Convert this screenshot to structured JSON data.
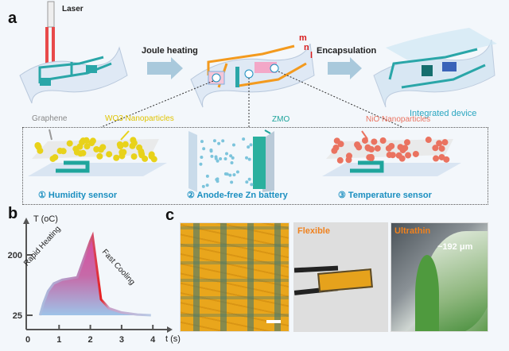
{
  "panel_a": {
    "label": "a",
    "laser": "Laser",
    "step1": "Joule heating",
    "step2": "Encapsulation",
    "integrated": "Integrated device",
    "electrodes": [
      "m",
      "n",
      "l"
    ],
    "markers": [
      "1",
      "2",
      "3"
    ],
    "components": [
      {
        "material": "Graphene",
        "material2": "WO3 Nanoparticles",
        "caption": "① Humidity sensor"
      },
      {
        "material": "ZMO",
        "caption": "② Anode-free Zn battery"
      },
      {
        "material": "NiO Nanoparticles",
        "caption": "③ Temperature sensor"
      }
    ],
    "colors": {
      "teal": "#2aa6a8",
      "orange": "#f39a1e",
      "wo3": "#e8d21a",
      "nio": "#ea7360",
      "caption": "#1b8fc0"
    }
  },
  "panel_b": {
    "label": "b",
    "chart_data": {
      "type": "area",
      "ylabel": "T (oC)",
      "xlabel": "t (s)",
      "xticks": [
        "0",
        "1",
        "2",
        "3",
        "4"
      ],
      "yticks": [
        "25",
        "200"
      ],
      "xlim": [
        0,
        4.3
      ],
      "ylim": [
        0,
        270
      ],
      "annotations": [
        "Rapid Heating",
        "Fast Cooling"
      ],
      "x": [
        0.39,
        0.5,
        0.65,
        0.83,
        1.1,
        1.58,
        1.8,
        2.0,
        2.07,
        2.18,
        2.34,
        2.6,
        3.0,
        3.5,
        3.94
      ],
      "y": [
        25,
        60,
        95,
        117,
        128,
        135,
        190,
        240,
        255,
        180,
        71,
        45,
        33,
        27,
        25
      ]
    }
  },
  "panel_c": {
    "label": "c",
    "photos": [
      {
        "caption": ""
      },
      {
        "caption": "Flexible"
      },
      {
        "caption": "Ultrathin",
        "note": "~192 μm"
      }
    ]
  }
}
